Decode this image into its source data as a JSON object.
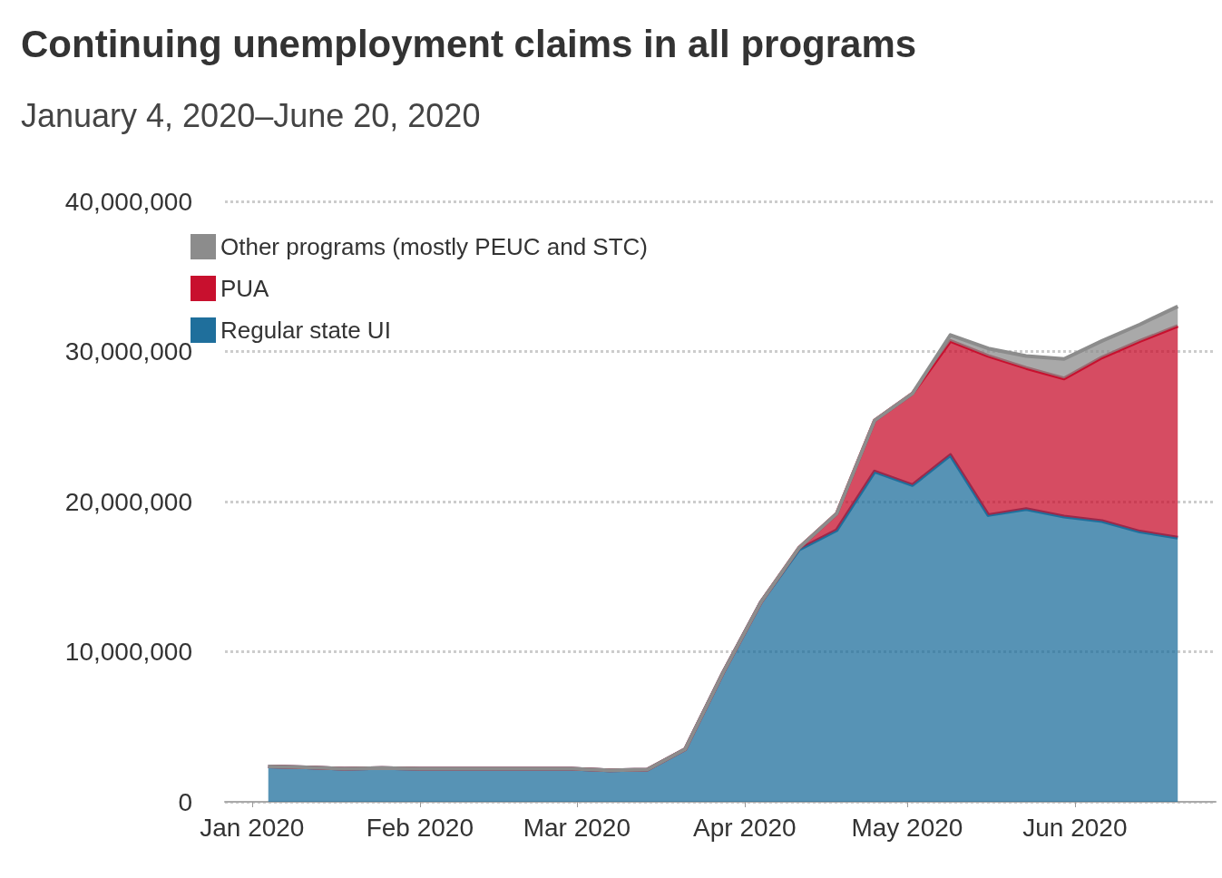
{
  "chart_data": {
    "type": "area",
    "title": "Continuing unemployment claims in all programs",
    "subtitle": "January 4, 2020–June 20, 2020",
    "x": [
      "2020-01-04",
      "2020-01-11",
      "2020-01-18",
      "2020-01-25",
      "2020-02-01",
      "2020-02-08",
      "2020-02-15",
      "2020-02-22",
      "2020-02-29",
      "2020-03-07",
      "2020-03-14",
      "2020-03-21",
      "2020-03-28",
      "2020-04-04",
      "2020-04-11",
      "2020-04-18",
      "2020-04-25",
      "2020-05-02",
      "2020-05-09",
      "2020-05-16",
      "2020-05-23",
      "2020-05-30",
      "2020-06-06",
      "2020-06-13",
      "2020-06-20"
    ],
    "stacked": true,
    "series": [
      {
        "name": "Regular state UI",
        "color": "#1f6f9c",
        "values": [
          2360000,
          2300000,
          2200000,
          2250000,
          2200000,
          2200000,
          2200000,
          2200000,
          2200000,
          2100000,
          2150000,
          3500000,
          8600000,
          13300000,
          16800000,
          18100000,
          22000000,
          21100000,
          23100000,
          19100000,
          19500000,
          19000000,
          18700000,
          18000000,
          17600000
        ]
      },
      {
        "name": "PUA",
        "color": "#c8102e",
        "values": [
          0,
          0,
          0,
          0,
          0,
          0,
          0,
          0,
          0,
          0,
          0,
          0,
          0,
          0,
          100000,
          1100000,
          3400000,
          6100000,
          7600000,
          10600000,
          9400000,
          9200000,
          10900000,
          12700000,
          14100000
        ]
      },
      {
        "name": "Other programs (mostly PEUC and STC)",
        "color": "#8c8c8c",
        "values": [
          0,
          0,
          0,
          0,
          0,
          0,
          0,
          0,
          0,
          0,
          0,
          0,
          0,
          0,
          0,
          0,
          0,
          0,
          400000,
          500000,
          800000,
          1300000,
          1100000,
          1100000,
          1300000
        ]
      }
    ],
    "xlim": [
      "2019-12-27",
      "2020-06-27"
    ],
    "xticks": [
      {
        "value": "2020-01-01",
        "label": "Jan 2020"
      },
      {
        "value": "2020-02-01",
        "label": "Feb 2020"
      },
      {
        "value": "2020-03-01",
        "label": "Mar 2020"
      },
      {
        "value": "2020-04-01",
        "label": "Apr 2020"
      },
      {
        "value": "2020-05-01",
        "label": "May 2020"
      },
      {
        "value": "2020-06-01",
        "label": "Jun 2020"
      }
    ],
    "ylim": [
      0,
      40000000
    ],
    "yticks": [
      0,
      {
        "value": 10000000,
        "label": "10,000,000"
      },
      {
        "value": 20000000,
        "label": "20,000,000"
      },
      {
        "value": 30000000,
        "label": "30,000,000"
      },
      {
        "value": 40000000,
        "label": "40,000,000"
      }
    ],
    "grid": "y",
    "legend": "top left"
  }
}
